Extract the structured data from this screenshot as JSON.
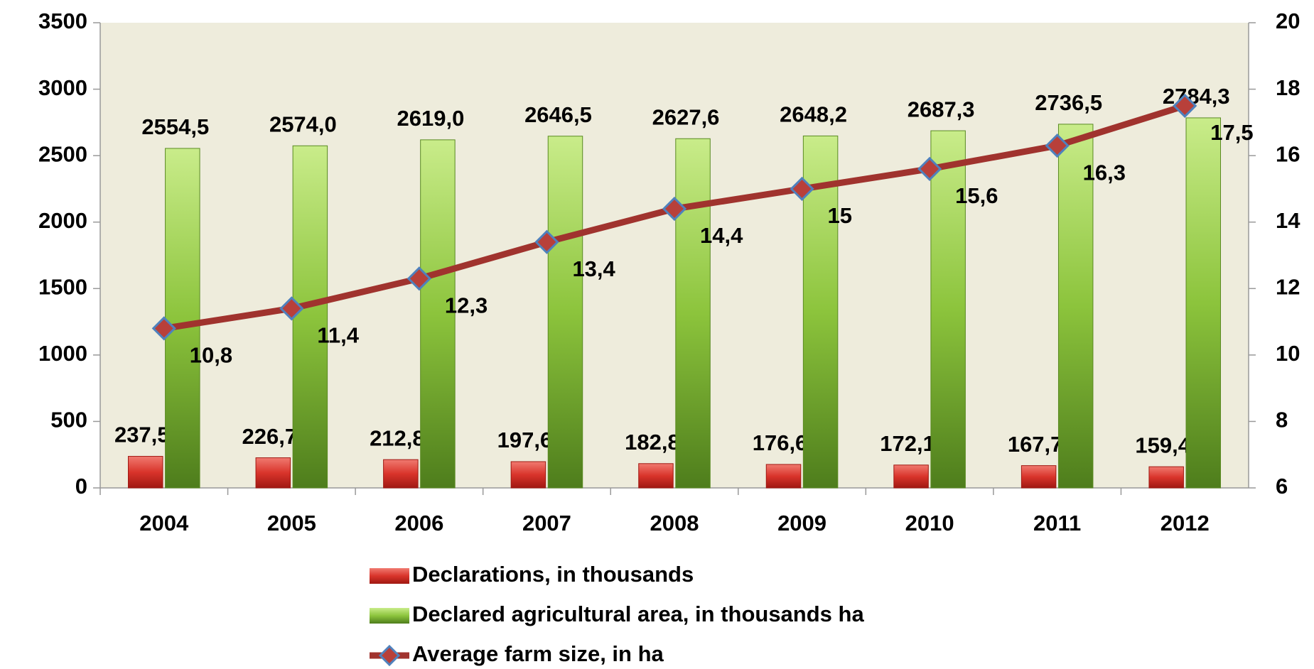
{
  "chart_data": {
    "type": "bar",
    "categories": [
      "2004",
      "2005",
      "2006",
      "2007",
      "2008",
      "2009",
      "2010",
      "2011",
      "2012"
    ],
    "series": [
      {
        "name": "Declarations, in thousands",
        "color": "#d9342b",
        "values": [
          237.5,
          226.7,
          212.8,
          197.6,
          182.8,
          176.6,
          172.1,
          167.7,
          159.4
        ],
        "value_labels": [
          "237,5",
          "226,7",
          "212,8",
          "197,6",
          "182,8",
          "176,6",
          "172,1",
          "167,7",
          "159,4"
        ]
      },
      {
        "name": "Declared agricultural area, in thousands ha",
        "color": "#8cc43c",
        "values": [
          2554.5,
          2574.0,
          2619.0,
          2646.5,
          2627.6,
          2648.2,
          2687.3,
          2736.5,
          2784.3
        ],
        "value_labels": [
          "2554,5",
          "2574,0",
          "2619,0",
          "2646,5",
          "2627,6",
          "2648,2",
          "2687,3",
          "2736,5",
          "2784,3"
        ]
      },
      {
        "name": "Average farm size, in ha",
        "color": "#a0332e",
        "type": "line",
        "axis": "y2",
        "values": [
          10.8,
          11.4,
          12.3,
          13.4,
          14.4,
          15,
          15.6,
          16.3,
          17.5
        ],
        "value_labels": [
          "10,8",
          "11,4",
          "12,3",
          "13,4",
          "14,4",
          "15",
          "15,6",
          "16,3",
          "17,5"
        ]
      }
    ],
    "ylim": [
      0,
      3500
    ],
    "yticks": [
      0,
      500,
      1000,
      1500,
      2000,
      2500,
      3000,
      3500
    ],
    "y2lim": [
      6,
      20
    ],
    "y2ticks": [
      6,
      8,
      10,
      12,
      14,
      16,
      18,
      20
    ],
    "legend": "bottom"
  }
}
